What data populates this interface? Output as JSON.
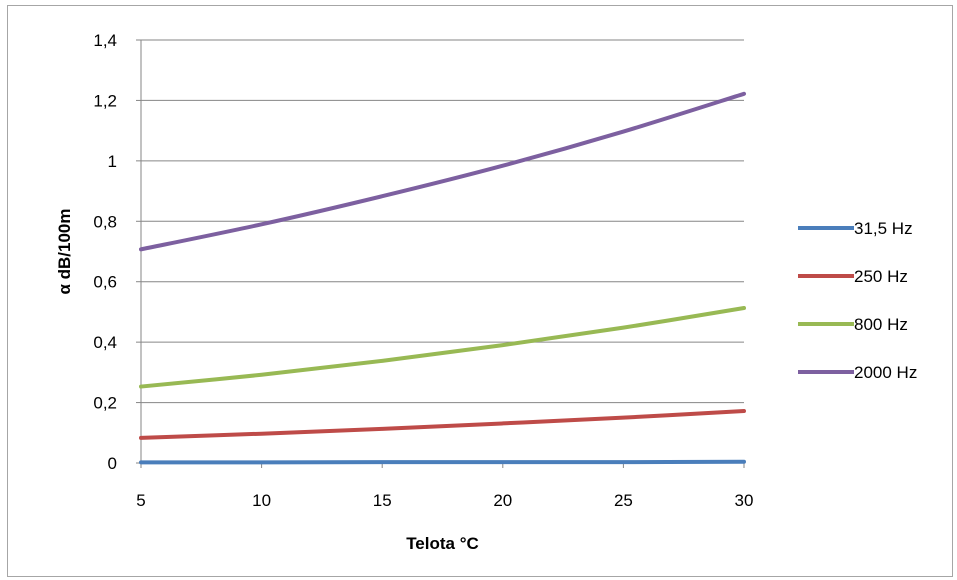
{
  "chart_data": {
    "type": "line",
    "title": "",
    "xlabel": "Telota °C",
    "ylabel": "α dB/100m",
    "xlim": [
      5,
      30
    ],
    "ylim": [
      0,
      1.4
    ],
    "x_ticks": [
      5,
      10,
      15,
      20,
      25,
      30
    ],
    "y_ticks": [
      0,
      0.2,
      0.4,
      0.6,
      0.8,
      1,
      1.2,
      1.4
    ],
    "x_tick_labels": [
      "5",
      "10",
      "15",
      "20",
      "25",
      "30"
    ],
    "y_tick_labels": [
      "0",
      "0,2",
      "0,4",
      "0,6",
      "0,8",
      "1",
      "1,2",
      "1,4"
    ],
    "grid": "horizontal",
    "legend_position": "right",
    "x": [
      5,
      10,
      15,
      20,
      25,
      30
    ],
    "series": [
      {
        "name": "31,5 Hz",
        "color": "#4a7ebb",
        "values": [
          0.002,
          0.002,
          0.003,
          0.003,
          0.003,
          0.004
        ]
      },
      {
        "name": "250 Hz",
        "color": "#be4b48",
        "values": [
          0.083,
          0.097,
          0.113,
          0.131,
          0.15,
          0.172
        ]
      },
      {
        "name": "800 Hz",
        "color": "#98b954",
        "values": [
          0.253,
          0.292,
          0.338,
          0.39,
          0.448,
          0.513
        ]
      },
      {
        "name": "2000 Hz",
        "color": "#7d60a0",
        "values": [
          0.707,
          0.79,
          0.883,
          0.984,
          1.097,
          1.222
        ]
      }
    ]
  }
}
